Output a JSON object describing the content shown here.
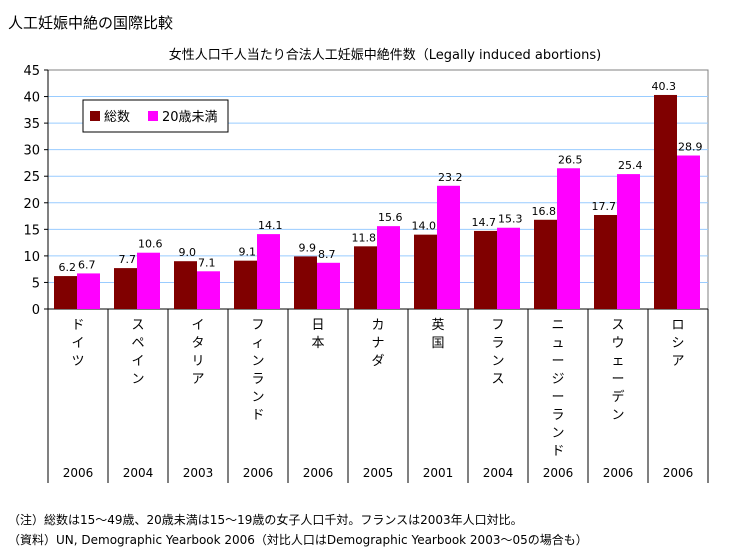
{
  "title": "人工妊娠中絶の国際比較",
  "chart_data": {
    "type": "bar",
    "title": "女性人口千人当たり合法人工妊娠中絶件数（Legally induced abortions)",
    "categories": [
      "ドイツ",
      "スペイン",
      "イタリア",
      "フィンランド",
      "日本",
      "カナダ",
      "英国",
      "フランス",
      "ニュージーランド",
      "スウェーデン",
      "ロシア"
    ],
    "years": [
      "2006",
      "2004",
      "2003",
      "2006",
      "2006",
      "2005",
      "2001",
      "2004",
      "2006",
      "2006",
      "2006"
    ],
    "series": [
      {
        "name": "総数",
        "color": "#800000",
        "values": [
          6.2,
          7.7,
          9.0,
          9.1,
          9.9,
          11.8,
          14.0,
          14.7,
          16.8,
          17.7,
          40.3
        ],
        "labels": [
          "6.2",
          "7.7",
          "9.0",
          "9.1",
          "9.9",
          "11.8",
          "14.0",
          "14.7",
          "16.8",
          "17.7",
          "40.3"
        ]
      },
      {
        "name": "20歳未満",
        "color": "#ff00ff",
        "values": [
          6.7,
          10.6,
          7.1,
          14.1,
          8.7,
          15.6,
          23.2,
          15.3,
          26.5,
          25.4,
          28.9
        ],
        "labels": [
          "6.7",
          "10.6",
          "7.1",
          "14.1",
          "8.7",
          "15.6",
          "23.2",
          "15.3",
          "26.5",
          "25.4",
          "28.9"
        ]
      }
    ],
    "ylim": [
      0,
      45
    ],
    "yticks": [
      "0",
      "5",
      "10",
      "15",
      "20",
      "25",
      "30",
      "35",
      "40",
      "45"
    ],
    "grid": true,
    "gridColor": "#99ccff",
    "legend": "top-left"
  },
  "notes": [
    "（注）総数は15～49歳、20歳未満は15～19歳の女子人口千対。フランスは2003年人口対比。",
    "（資料）UN, Demographic Yearbook 2006（対比人口はDemographic Yearbook 2003～05の場合も）"
  ]
}
